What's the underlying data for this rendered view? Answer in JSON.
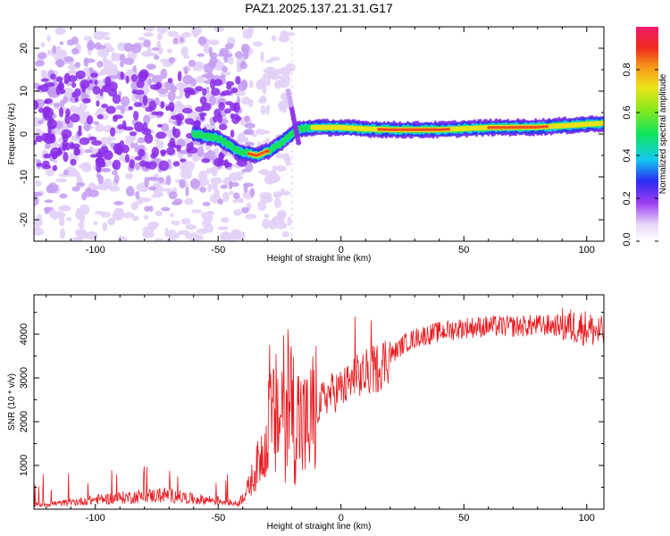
{
  "title": "PAZ1.2025.137.21.31.G17",
  "chart_data": [
    {
      "type": "heatmap",
      "xlabel": "Height of straight line (km)",
      "ylabel": "Frequency (Hz)",
      "xlim": [
        -125,
        107
      ],
      "ylim": [
        -25,
        25
      ],
      "xticks": [
        -100,
        -50,
        0,
        50,
        100
      ],
      "yticks": [
        -20,
        -10,
        0,
        10,
        20
      ],
      "ridge": [
        {
          "x": -60,
          "y": 0
        },
        {
          "x": -50,
          "y": -1
        },
        {
          "x": -42,
          "y": -4
        },
        {
          "x": -34,
          "y": -5
        },
        {
          "x": -28,
          "y": -3.5
        },
        {
          "x": -22,
          "y": -1
        },
        {
          "x": -18,
          "y": 1
        },
        {
          "x": -12,
          "y": 1.5
        },
        {
          "x": 0,
          "y": 1.5
        },
        {
          "x": 10,
          "y": 1.2
        },
        {
          "x": 20,
          "y": 1
        },
        {
          "x": 40,
          "y": 1
        },
        {
          "x": 60,
          "y": 1.5
        },
        {
          "x": 80,
          "y": 1.6
        },
        {
          "x": 107,
          "y": 2.5
        }
      ],
      "colorbar": {
        "label": "Normalized spectral amplitude",
        "range": [
          0,
          1
        ],
        "ticks": [
          0.0,
          0.2,
          0.4,
          0.6,
          0.8
        ],
        "tick_labels": [
          "0.0",
          "0.2",
          "0.4",
          "0.6",
          "0.8"
        ]
      }
    },
    {
      "type": "line",
      "xlabel": "Height of straight line (km)",
      "ylabel": "SNR (10 * v/v)",
      "xlim": [
        -125,
        107
      ],
      "ylim": [
        0,
        4900
      ],
      "xticks": [
        -100,
        -50,
        0,
        50,
        100
      ],
      "yticks": [
        1000,
        2000,
        3000,
        4000
      ],
      "color": "#e8191e",
      "series": [
        {
          "x": [
            -125,
            -110,
            -100,
            -90,
            -80,
            -70,
            -60,
            -50,
            -42,
            -38,
            -34,
            -30,
            -26,
            -22,
            -18,
            -14,
            -10,
            -6,
            -2,
            2,
            6,
            10,
            14,
            20,
            26,
            32,
            40,
            50,
            60,
            70,
            80,
            90,
            100,
            107
          ],
          "values": [
            100,
            150,
            220,
            260,
            300,
            330,
            230,
            200,
            120,
            450,
            1000,
            1700,
            2100,
            2400,
            2100,
            1800,
            2300,
            2600,
            2700,
            2800,
            3000,
            3100,
            3200,
            3500,
            3800,
            3950,
            4050,
            4150,
            4180,
            4180,
            4200,
            4200,
            4150,
            4000
          ]
        }
      ]
    }
  ]
}
